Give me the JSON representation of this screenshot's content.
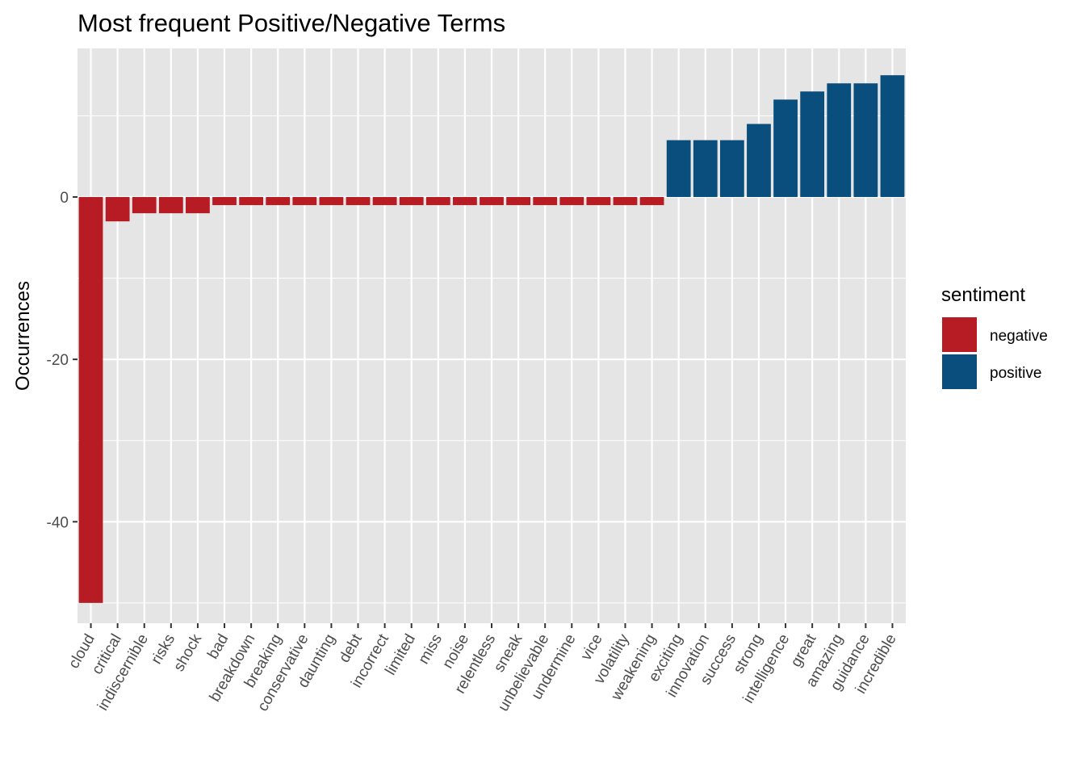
{
  "chart_data": {
    "type": "bar",
    "title": "Most frequent Positive/Negative Terms",
    "xlabel": "",
    "ylabel": "Occurrences",
    "ylim": [
      -52.5,
      18.3
    ],
    "yticks": [
      -40,
      -20,
      0
    ],
    "ytick_labels": [
      "-40",
      "-20",
      "0"
    ],
    "grid": true,
    "x_tick_rotation_deg": -60,
    "categories": [
      "cloud",
      "critical",
      "indiscernible",
      "risks",
      "shock",
      "bad",
      "breakdown",
      "breaking",
      "conservative",
      "daunting",
      "debt",
      "incorrect",
      "limited",
      "miss",
      "noise",
      "relentless",
      "sneak",
      "unbelievable",
      "undermine",
      "vice",
      "volatility",
      "weakening",
      "exciting",
      "innovation",
      "success",
      "strong",
      "intelligence",
      "great",
      "amazing",
      "guidance",
      "incredible"
    ],
    "values": [
      -50,
      -3,
      -2,
      -2,
      -2,
      -1,
      -1,
      -1,
      -1,
      -1,
      -1,
      -1,
      -1,
      -1,
      -1,
      -1,
      -1,
      -1,
      -1,
      -1,
      -1,
      -1,
      7,
      7,
      7,
      9,
      12,
      13,
      14,
      14,
      15
    ],
    "sentiment": [
      "negative",
      "negative",
      "negative",
      "negative",
      "negative",
      "negative",
      "negative",
      "negative",
      "negative",
      "negative",
      "negative",
      "negative",
      "negative",
      "negative",
      "negative",
      "negative",
      "negative",
      "negative",
      "negative",
      "negative",
      "negative",
      "negative",
      "positive",
      "positive",
      "positive",
      "positive",
      "positive",
      "positive",
      "positive",
      "positive",
      "positive"
    ],
    "legend": {
      "title": "sentiment",
      "position": "right",
      "entries": [
        {
          "label": "negative",
          "color": "#B71C24"
        },
        {
          "label": "positive",
          "color": "#0A4E7E"
        }
      ]
    },
    "colors": {
      "panel_background": "#E5E5E5",
      "grid_line": "#FFFFFF",
      "tick_color": "#333333",
      "negative": "#B71C24",
      "positive": "#0A4E7E"
    }
  }
}
